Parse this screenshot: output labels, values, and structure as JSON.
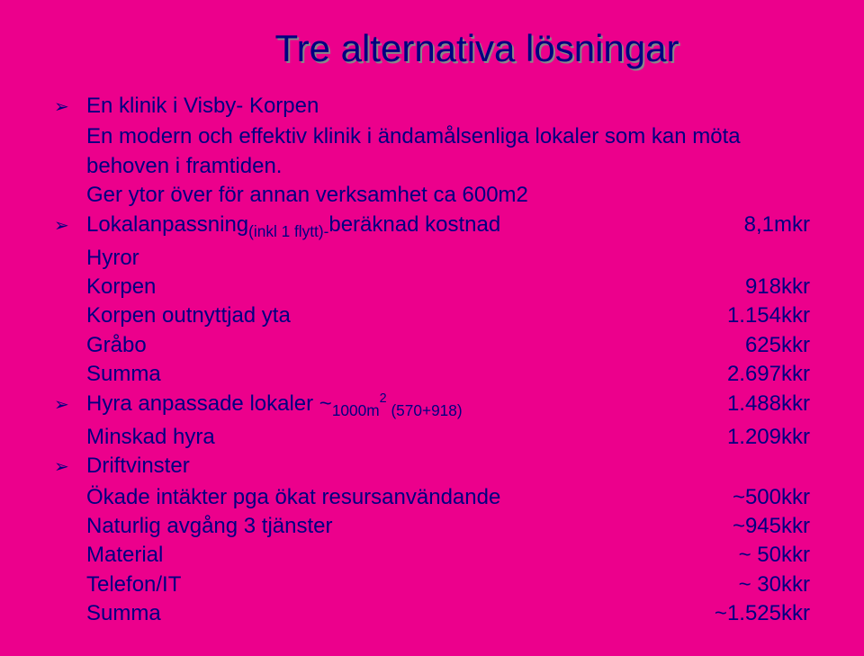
{
  "colors": {
    "background": "#ec008c",
    "text": "#000080",
    "title_shadow": "#888888"
  },
  "typography": {
    "title_fontsize": 42,
    "body_fontsize": 24,
    "font_family": "Arial"
  },
  "title": "Tre alternativa lösningar",
  "bullet_glyph": "➢",
  "b1": {
    "l1": "En klinik i Visby- Korpen",
    "l2": "En modern och effektiv klinik i ändamålsenliga lokaler som kan möta behoven i framtiden.",
    "l3": "Ger ytor över för annan verksamhet ca 600m2"
  },
  "b2": {
    "h_pre": "Lokalanpassning",
    "h_sub": "(inkl 1 flytt)-",
    "h_post": "beräknad kostnad",
    "h_val": "8,1mkr",
    "r1": "Hyror",
    "r2": "Korpen",
    "r2v": "918kkr",
    "r3": "Korpen outnyttjad yta",
    "r3v": "1.154kkr",
    "r4": "Gråbo",
    "r4v": "625kkr",
    "r5": "Summa",
    "r5v": "2.697kkr"
  },
  "b3": {
    "h_pre": "Hyra anpassade lokaler ~",
    "h_num": "1000m",
    "h_sup": "2",
    "h_sub": " (570+918)",
    "h_val": "1.488kkr",
    "r1": "Minskad hyra",
    "r1v": "1.209kkr"
  },
  "b4": {
    "h": "Driftvinster",
    "r1": "Ökade intäkter pga ökat resursanvändande",
    "r1v": "~500kkr",
    "r2": "Naturlig avgång 3 tjänster",
    "r2v": "~945kkr",
    "r3": "Material",
    "r3v": "~  50kkr",
    "r4": "Telefon/IT",
    "r4v": "~  30kkr",
    "r5": "Summa",
    "r5v": "~1.525kkr"
  }
}
